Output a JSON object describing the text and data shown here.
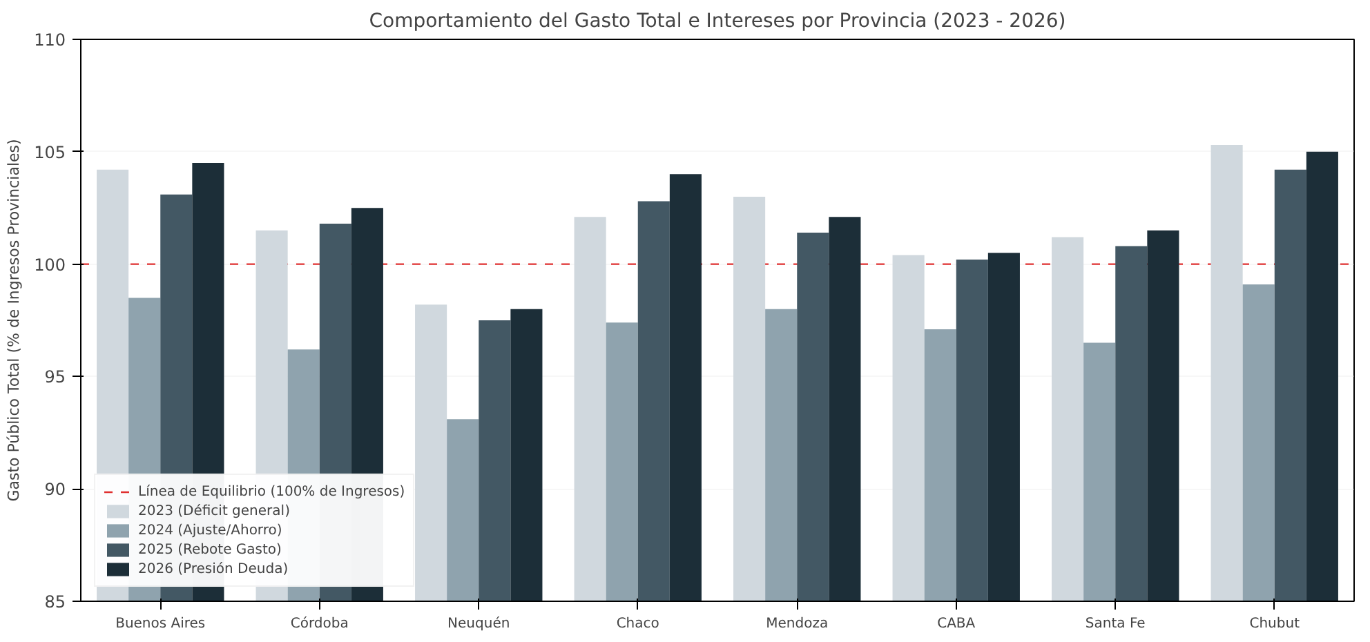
{
  "chart_data": {
    "type": "bar",
    "title": "Comportamiento del Gasto Total e Intereses por Provincia (2023 - 2026)",
    "ylabel": "Gasto Público Total (% de Ingresos Provinciales)",
    "categories": [
      "Buenos Aires",
      "Córdoba",
      "Neuquén",
      "Chaco",
      "Mendoza",
      "CABA",
      "Santa Fe",
      "Chubut"
    ],
    "series": [
      {
        "name": "2023 (Déficit general)",
        "color": "#d0d8de",
        "values": [
          104.2,
          101.5,
          98.2,
          102.1,
          103.0,
          100.4,
          101.2,
          105.3
        ]
      },
      {
        "name": "2024 (Ajuste/Ahorro)",
        "color": "#8fa3ae",
        "values": [
          98.5,
          96.2,
          93.1,
          97.4,
          98.0,
          97.1,
          96.5,
          99.1
        ]
      },
      {
        "name": "2025 (Rebote Gasto)",
        "color": "#435864",
        "values": [
          103.1,
          101.8,
          97.5,
          102.8,
          101.4,
          100.2,
          100.8,
          104.2
        ]
      },
      {
        "name": "2026 (Presión Deuda)",
        "color": "#1c2e38",
        "values": [
          104.5,
          102.5,
          98.0,
          104.0,
          102.1,
          100.5,
          101.5,
          105.0
        ]
      }
    ],
    "ylim": [
      85,
      110
    ],
    "yticks": [
      85,
      90,
      95,
      100,
      105,
      110
    ],
    "grid": "y",
    "legend": "bottom left",
    "ref_lines": [
      {
        "axis": "y",
        "value": 100,
        "label": "Línea de Equilibrio (100% de Ingresos)",
        "color": "#e03030",
        "line_style": "dashed"
      }
    ]
  }
}
